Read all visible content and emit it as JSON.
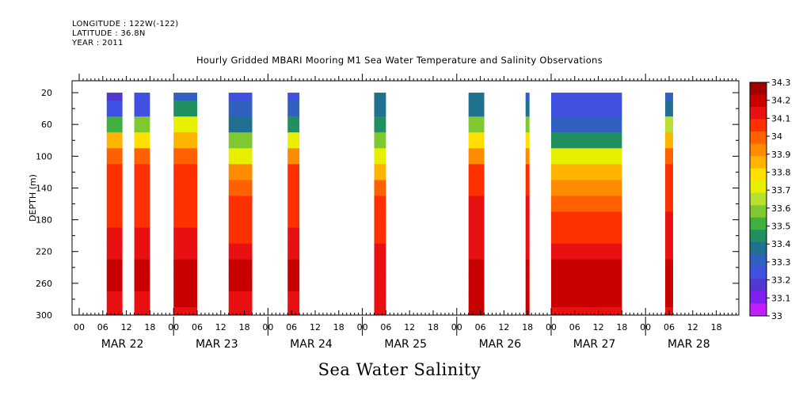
{
  "header": {
    "longitude": "LONGITUDE : 122W(-122)",
    "latitude": "LATITUDE : 36.8N",
    "year": "YEAR : 2011"
  },
  "chart_data": {
    "type": "heatmap",
    "title": "Hourly Gridded MBARI Mooring M1 Sea Water Temperature and Salinity Observations",
    "xlabel": "Sea Water Salinity",
    "ylabel": "DEPTH (m)",
    "ylim": [
      300,
      5
    ],
    "y_ticks": [
      20,
      60,
      100,
      140,
      180,
      220,
      260,
      300
    ],
    "x_hour_ticks": [
      "00",
      "06",
      "12",
      "18",
      "00",
      "06",
      "12",
      "18",
      "00",
      "06",
      "12",
      "18",
      "00",
      "06",
      "12",
      "18",
      "00",
      "06",
      "12",
      "18",
      "00",
      "06",
      "12",
      "18",
      "00",
      "06",
      "12",
      "18"
    ],
    "x_day_labels": [
      "MAR 22",
      "MAR 23",
      "MAR 24",
      "MAR 25",
      "MAR 26",
      "MAR 27",
      "MAR 28"
    ],
    "colorbar": {
      "ticks": [
        "34.3",
        "34.2",
        "34.1",
        "34",
        "33.9",
        "33.8",
        "33.7",
        "33.6",
        "33.5",
        "33.4",
        "33.3",
        "33.2",
        "33.1",
        "33"
      ],
      "colors": [
        "#a00000",
        "#c80000",
        "#e81010",
        "#ff3000",
        "#ff6000",
        "#ff8c00",
        "#ffb400",
        "#ffe000",
        "#e8f000",
        "#b8e030",
        "#80c830",
        "#40b040",
        "#209060",
        "#207090",
        "#3060c0",
        "#4050e0",
        "#5038d0",
        "#8020f0",
        "#c020ff"
      ]
    },
    "depths": [
      20,
      40,
      60,
      80,
      100,
      120,
      140,
      160,
      180,
      200,
      220,
      240,
      260,
      280,
      300
    ],
    "segments": [
      {
        "day": 0,
        "start": 7,
        "end": 11,
        "profile": [
          33.15,
          33.25,
          33.5,
          33.85,
          34.0,
          34.05,
          34.08,
          34.1,
          34.1,
          34.12,
          34.15,
          34.2,
          34.22,
          34.18,
          34.15
        ]
      },
      {
        "day": 0,
        "start": 14,
        "end": 18,
        "profile": [
          33.2,
          33.25,
          33.55,
          33.8,
          33.98,
          34.05,
          34.08,
          34.1,
          34.1,
          34.12,
          34.15,
          34.2,
          34.22,
          34.18,
          34.15
        ]
      },
      {
        "day": 1,
        "start": 0,
        "end": 6,
        "profile": [
          33.3,
          33.45,
          33.75,
          33.88,
          33.98,
          34.05,
          34.08,
          34.1,
          34.1,
          34.12,
          34.18,
          34.22,
          34.25,
          34.2,
          34.15
        ]
      },
      {
        "day": 1,
        "start": 14,
        "end": 20,
        "profile": [
          33.25,
          33.3,
          33.35,
          33.55,
          33.75,
          33.95,
          34.02,
          34.05,
          34.08,
          34.1,
          34.15,
          34.2,
          34.22,
          34.18,
          34.12
        ]
      },
      {
        "day": 2,
        "start": 5,
        "end": 8,
        "profile": [
          33.25,
          33.3,
          33.45,
          33.75,
          33.95,
          34.05,
          34.08,
          34.1,
          34.1,
          34.12,
          34.15,
          34.2,
          34.22,
          34.18,
          34.15
        ]
      },
      {
        "day": 3,
        "start": 3,
        "end": 6,
        "profile": [
          33.35,
          33.38,
          33.4,
          33.55,
          33.75,
          33.88,
          33.98,
          34.05,
          34.08,
          34.1,
          34.12,
          34.15,
          34.18,
          34.15,
          34.12
        ]
      },
      {
        "day": 4,
        "start": 3,
        "end": 7,
        "profile": [
          33.35,
          33.38,
          33.6,
          33.82,
          33.95,
          34.05,
          34.08,
          34.12,
          34.15,
          34.15,
          34.18,
          34.22,
          34.25,
          34.22,
          34.2
        ]
      },
      {
        "day": 4,
        "start": 17.5,
        "end": 18.5,
        "profile": [
          33.3,
          33.35,
          33.6,
          33.82,
          33.95,
          34.05,
          34.08,
          34.12,
          34.15,
          34.15,
          34.18,
          34.22,
          34.25,
          34.22,
          34.2
        ]
      },
      {
        "day": 5,
        "start": 0,
        "end": 18,
        "profile": [
          33.25,
          33.25,
          33.28,
          33.45,
          33.75,
          33.88,
          33.95,
          34.02,
          34.05,
          34.08,
          34.12,
          34.22,
          34.25,
          34.22,
          34.15
        ]
      },
      {
        "day": 6,
        "start": 5,
        "end": 7,
        "profile": [
          33.28,
          33.35,
          33.62,
          33.85,
          33.98,
          34.05,
          34.08,
          34.1,
          34.12,
          34.15,
          34.18,
          34.22,
          34.25,
          34.2,
          34.15
        ]
      }
    ]
  }
}
